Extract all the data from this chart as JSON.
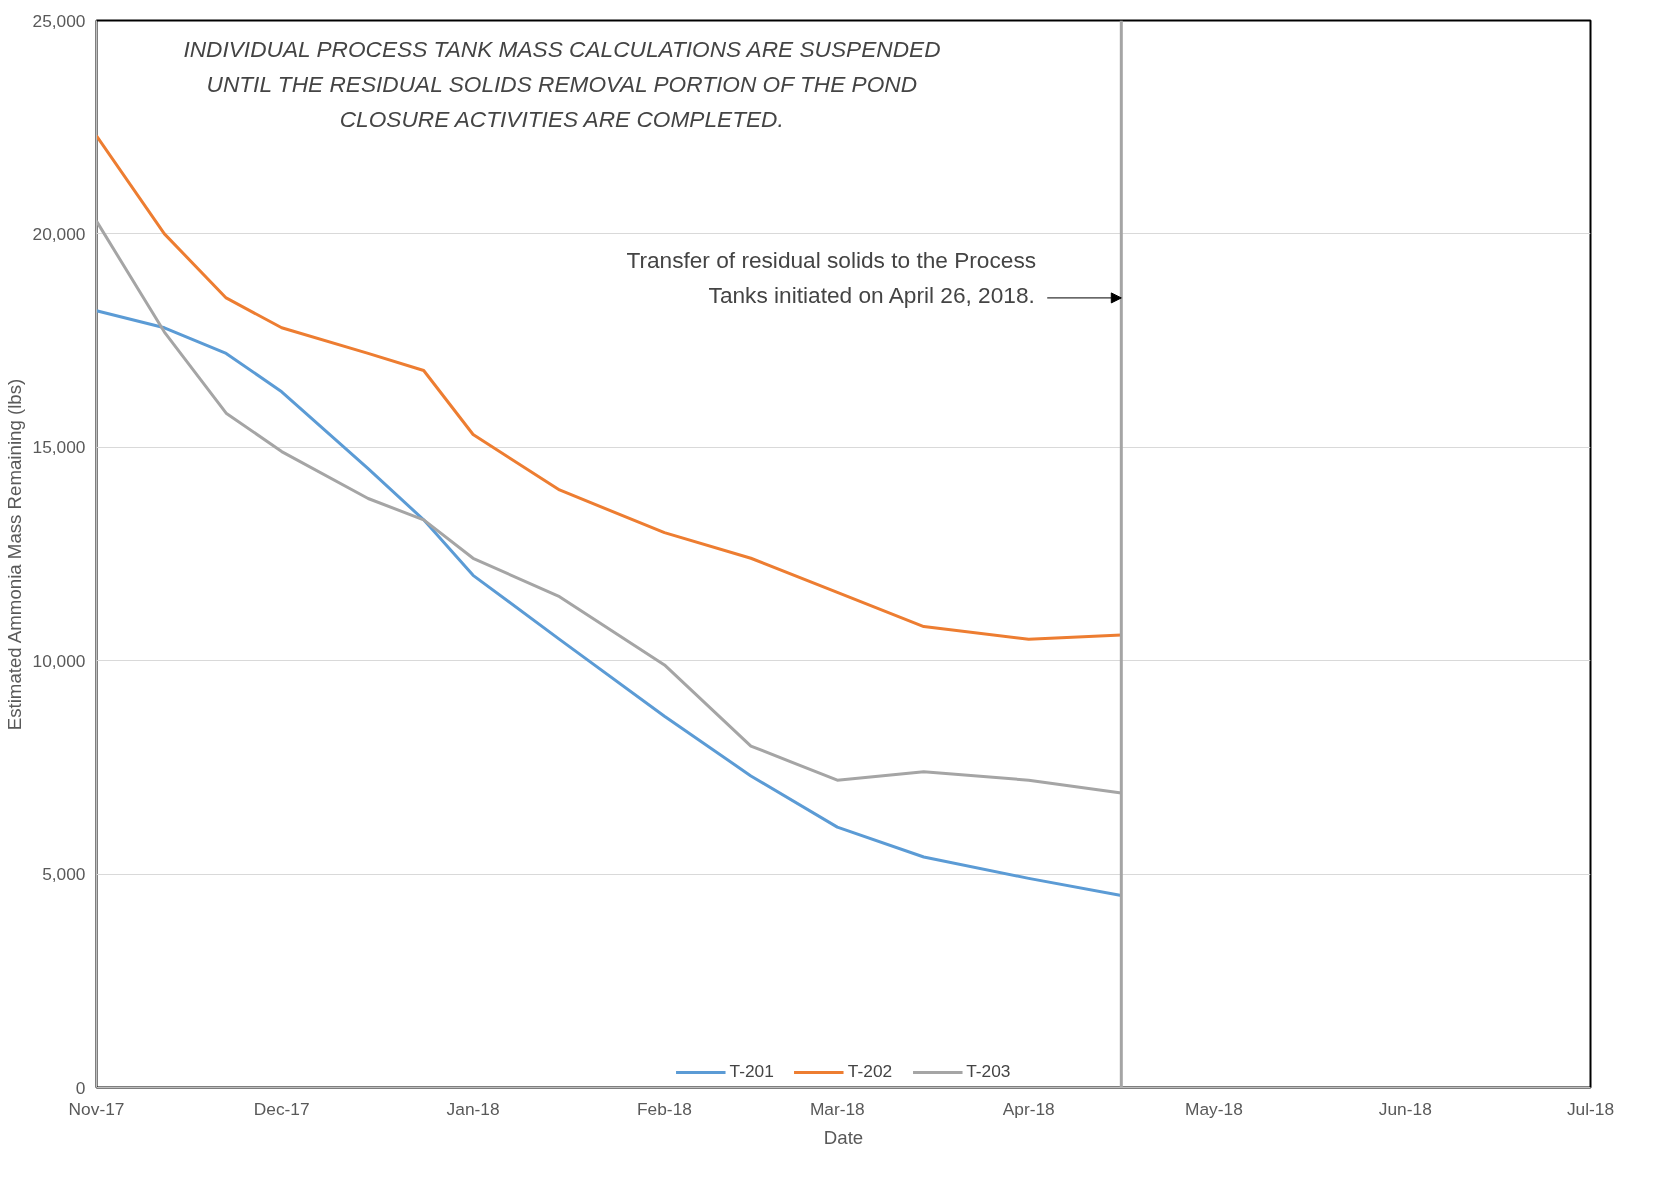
{
  "chart_data": {
    "type": "line",
    "xlabel": "Date",
    "ylabel": "Estimated Ammonia Mass Remaining (lbs)",
    "annotations": [
      "INDIVIDUAL PROCESS TANK MASS CALCULATIONS ARE SUSPENDED\nUNTIL THE RESIDUAL SOLIDS REMOVAL PORTION OF THE POND\nCLOSURE ACTIVITIES ARE COMPLETED."
    ],
    "x": [
      "2017-11-01",
      "2017-11-12",
      "2017-11-22",
      "2017-12-01",
      "2017-12-15",
      "2017-12-24",
      "2018-01-01",
      "2018-01-15",
      "2018-02-01",
      "2018-02-15",
      "2018-03-01",
      "2018-03-15",
      "2018-04-01",
      "2018-04-16"
    ],
    "series": [
      {
        "name": "T-201",
        "color": "#5b9bd5",
        "values": [
          18200,
          17800,
          17200,
          16300,
          14500,
          13300,
          12000,
          10500,
          8700,
          7300,
          6100,
          5400,
          4900,
          4500
        ]
      },
      {
        "name": "T-202",
        "color": "#ed7d31",
        "values": [
          22300,
          20000,
          18500,
          17800,
          17200,
          16800,
          15300,
          14000,
          13000,
          12400,
          11600,
          10800,
          10500,
          10600
        ]
      },
      {
        "name": "T-203",
        "color": "#a5a5a5",
        "values": [
          20300,
          17700,
          15800,
          14900,
          13800,
          13300,
          12400,
          11500,
          9900,
          8000,
          7200,
          7400,
          7200,
          6900
        ]
      }
    ],
    "xlim": [
      "2017-11-01",
      "2018-07-01"
    ],
    "xticks": [
      {
        "value": "2017-11-01",
        "label": "Nov-17"
      },
      {
        "value": "2017-12-01",
        "label": "Dec-17"
      },
      {
        "value": "2018-01-01",
        "label": "Jan-18"
      },
      {
        "value": "2018-02-01",
        "label": "Feb-18"
      },
      {
        "value": "2018-03-01",
        "label": "Mar-18"
      },
      {
        "value": "2018-04-01",
        "label": "Apr-18"
      },
      {
        "value": "2018-05-01",
        "label": "May-18"
      },
      {
        "value": "2018-06-01",
        "label": "Jun-18"
      },
      {
        "value": "2018-07-01",
        "label": "Jul-18"
      }
    ],
    "ylim": [
      0,
      25000
    ],
    "yticks": [
      {
        "value": 0,
        "label": "0"
      },
      {
        "value": 5000,
        "label": "5,000"
      },
      {
        "value": 10000,
        "label": "10,000"
      },
      {
        "value": 15000,
        "label": "15,000"
      },
      {
        "value": 20000,
        "label": "20,000"
      },
      {
        "value": 25000,
        "label": "25,000"
      }
    ],
    "ref_lines": [
      {
        "axis": "x",
        "value": "2018-04-16",
        "label": "Transfer of residual solids to the Process\nTanks initiated on April 26, 2018.",
        "color": "#a5a5a5"
      }
    ],
    "grid": "y",
    "legend": "bottom",
    "marker": "none",
    "line_style": "solid"
  }
}
